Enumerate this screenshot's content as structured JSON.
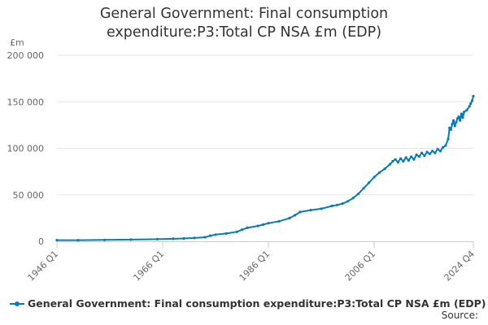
{
  "chart_data": {
    "type": "line",
    "title_lines": [
      "General Government: Final consumption",
      "expenditure:P3:Total CP NSA £m (EDP)"
    ],
    "ylabel": "£m",
    "xlabel": "",
    "ylim": [
      0,
      200000
    ],
    "yticks": [
      0,
      50000,
      100000,
      150000,
      200000
    ],
    "ytick_labels": [
      "0",
      "50 000",
      "100 000",
      "150 000",
      "200 000"
    ],
    "xlim": [
      1946.0,
      2024.75
    ],
    "xticks": [
      1946.0,
      1966.0,
      1986.0,
      2006.0,
      2024.75
    ],
    "xtick_labels": [
      "1946 Q1",
      "1966 Q1",
      "1986 Q1",
      "2006 Q1",
      "2024 Q4"
    ],
    "grid": true,
    "legend_position": "bottom-left",
    "source_label": "Source:",
    "series": [
      {
        "name": "General Government: Final consumption expenditure:P3:Total CP NSA £m (EDP)",
        "color": "#0a7bb5",
        "x": [
          1946.0,
          1950.0,
          1955.0,
          1960.0,
          1965.0,
          1968.0,
          1970.0,
          1972.0,
          1974.0,
          1975.0,
          1976.0,
          1978.0,
          1980.0,
          1981.0,
          1982.0,
          1984.0,
          1985.0,
          1986.0,
          1988.0,
          1990.0,
          1991.0,
          1992.0,
          1994.0,
          1996.0,
          1998.0,
          1999.0,
          2000.0,
          2001.0,
          2002.0,
          2003.0,
          2004.0,
          2005.0,
          2006.0,
          2007.0,
          2008.0,
          2009.0,
          2009.5,
          2010.0,
          2010.5,
          2011.0,
          2011.5,
          2012.0,
          2012.5,
          2013.0,
          2013.5,
          2014.0,
          2014.5,
          2015.0,
          2015.5,
          2016.0,
          2016.5,
          2017.0,
          2017.5,
          2018.0,
          2018.5,
          2019.0,
          2019.5,
          2020.0,
          2020.25,
          2020.5,
          2020.75,
          2021.0,
          2021.25,
          2021.5,
          2021.75,
          2022.0,
          2022.25,
          2022.5,
          2022.75,
          2023.0,
          2023.5,
          2024.0,
          2024.25,
          2024.5,
          2024.75
        ],
        "y": [
          1200,
          1250,
          1500,
          1800,
          2300,
          2700,
          3100,
          3600,
          4400,
          6000,
          7200,
          8400,
          10200,
          12500,
          14500,
          16500,
          18000,
          19500,
          21500,
          25000,
          28000,
          31500,
          33500,
          35000,
          38000,
          39000,
          40500,
          43000,
          46500,
          51000,
          57000,
          63000,
          69000,
          74000,
          78000,
          83000,
          86000,
          88000,
          85000,
          89000,
          86000,
          90000,
          87000,
          91000,
          88000,
          93000,
          91000,
          95000,
          92000,
          96000,
          94000,
          97000,
          95000,
          99000,
          97000,
          101000,
          103000,
          110000,
          122000,
          120000,
          126000,
          130000,
          124000,
          128000,
          132000,
          134000,
          130000,
          137000,
          133000,
          139000,
          141000,
          145000,
          148000,
          151000,
          156000
        ]
      }
    ]
  }
}
